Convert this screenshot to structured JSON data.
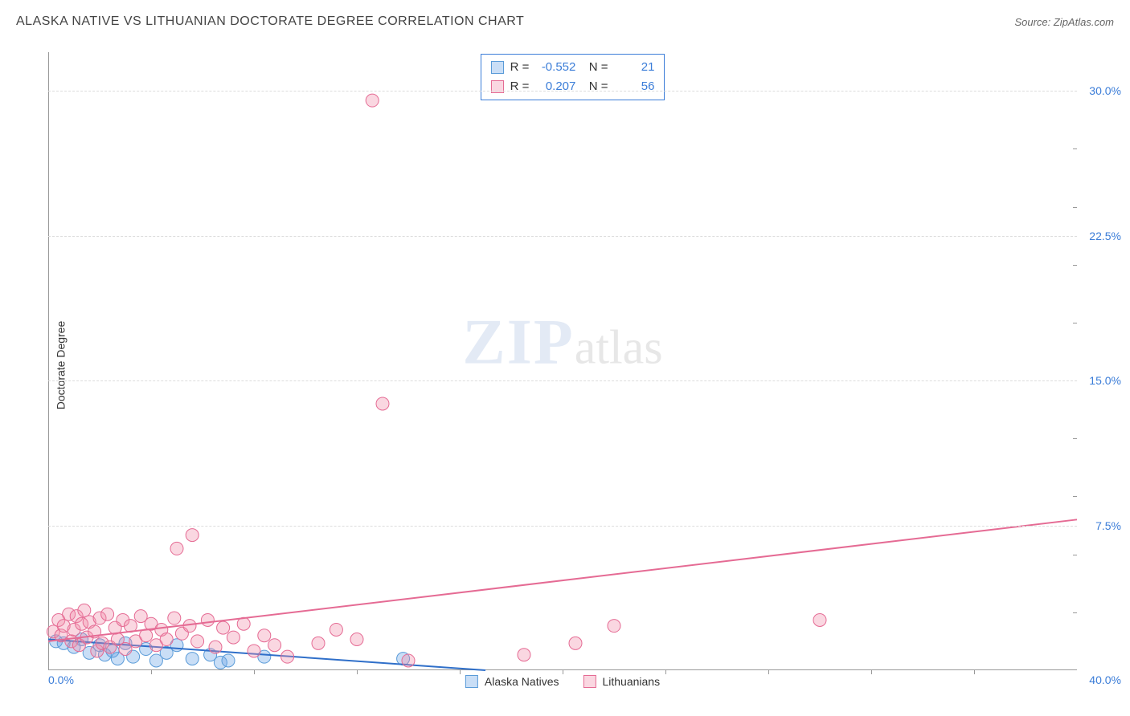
{
  "header": {
    "title": "ALASKA NATIVE VS LITHUANIAN DOCTORATE DEGREE CORRELATION CHART",
    "source": "Source: ZipAtlas.com"
  },
  "chart": {
    "type": "scatter",
    "ylabel": "Doctorate Degree",
    "xlim": [
      0,
      40
    ],
    "ylim": [
      0,
      32
    ],
    "background_color": "#ffffff",
    "grid_color": "#dddddd",
    "axis_color": "#999999",
    "tick_label_color": "#3b7dd8",
    "tick_fontsize": 14,
    "yticks": [
      {
        "v": 7.5,
        "label": "7.5%"
      },
      {
        "v": 15.0,
        "label": "15.0%"
      },
      {
        "v": 22.5,
        "label": "22.5%"
      },
      {
        "v": 30.0,
        "label": "30.0%"
      }
    ],
    "xticks_labels": {
      "min": "0.0%",
      "max": "40.0%"
    },
    "xticks_minor": [
      4,
      8,
      12,
      16,
      20,
      24,
      28,
      32,
      36
    ],
    "yticks_minor_right": [
      3,
      6,
      9,
      12,
      18,
      21,
      24,
      27
    ],
    "watermark": {
      "zip": "ZIP",
      "atlas": "atlas"
    },
    "series": [
      {
        "name": "Alaska Natives",
        "label": "Alaska Natives",
        "fill": "rgba(100,160,230,0.35)",
        "stroke": "#5a9bd8",
        "line_color": "#2f6fc9",
        "line_width": 2,
        "marker_r": 8,
        "trend": {
          "x1": 0,
          "y1": 1.6,
          "x2": 17,
          "y2": 0
        },
        "stats": {
          "R": "-0.552",
          "N": "21"
        },
        "points": [
          [
            0.3,
            1.5
          ],
          [
            0.6,
            1.4
          ],
          [
            1.0,
            1.2
          ],
          [
            1.3,
            1.6
          ],
          [
            1.6,
            0.9
          ],
          [
            2.0,
            1.3
          ],
          [
            2.2,
            0.8
          ],
          [
            2.5,
            1.0
          ],
          [
            2.7,
            0.6
          ],
          [
            3.0,
            1.4
          ],
          [
            3.3,
            0.7
          ],
          [
            3.8,
            1.1
          ],
          [
            4.2,
            0.5
          ],
          [
            4.6,
            0.9
          ],
          [
            5.0,
            1.3
          ],
          [
            5.6,
            0.6
          ],
          [
            6.3,
            0.8
          ],
          [
            6.7,
            0.4
          ],
          [
            7.0,
            0.5
          ],
          [
            8.4,
            0.7
          ],
          [
            13.8,
            0.6
          ]
        ]
      },
      {
        "name": "Lithuanians",
        "label": "Lithuanians",
        "fill": "rgba(240,140,170,0.35)",
        "stroke": "#e56b94",
        "line_color": "#e56b94",
        "line_width": 2,
        "marker_r": 8,
        "trend": {
          "x1": 0,
          "y1": 1.5,
          "x2": 40,
          "y2": 7.8
        },
        "stats": {
          "R": "0.207",
          "N": "56"
        },
        "points": [
          [
            0.2,
            2.0
          ],
          [
            0.4,
            2.6
          ],
          [
            0.5,
            1.8
          ],
          [
            0.6,
            2.3
          ],
          [
            0.8,
            2.9
          ],
          [
            0.9,
            1.5
          ],
          [
            1.0,
            2.1
          ],
          [
            1.1,
            2.8
          ],
          [
            1.2,
            1.3
          ],
          [
            1.3,
            2.4
          ],
          [
            1.4,
            3.1
          ],
          [
            1.5,
            1.7
          ],
          [
            1.6,
            2.5
          ],
          [
            1.8,
            2.0
          ],
          [
            1.9,
            1.0
          ],
          [
            2.0,
            2.7
          ],
          [
            2.1,
            1.4
          ],
          [
            2.3,
            2.9
          ],
          [
            2.4,
            1.2
          ],
          [
            2.6,
            2.2
          ],
          [
            2.7,
            1.6
          ],
          [
            2.9,
            2.6
          ],
          [
            3.0,
            1.1
          ],
          [
            3.2,
            2.3
          ],
          [
            3.4,
            1.5
          ],
          [
            3.6,
            2.8
          ],
          [
            3.8,
            1.8
          ],
          [
            4.0,
            2.4
          ],
          [
            4.2,
            1.3
          ],
          [
            4.4,
            2.1
          ],
          [
            4.6,
            1.6
          ],
          [
            4.9,
            2.7
          ],
          [
            5.0,
            6.3
          ],
          [
            5.2,
            1.9
          ],
          [
            5.5,
            2.3
          ],
          [
            5.6,
            7.0
          ],
          [
            5.8,
            1.5
          ],
          [
            6.2,
            2.6
          ],
          [
            6.5,
            1.2
          ],
          [
            6.8,
            2.2
          ],
          [
            7.2,
            1.7
          ],
          [
            7.6,
            2.4
          ],
          [
            8.0,
            1.0
          ],
          [
            8.4,
            1.8
          ],
          [
            8.8,
            1.3
          ],
          [
            9.3,
            0.7
          ],
          [
            10.5,
            1.4
          ],
          [
            11.2,
            2.1
          ],
          [
            12.0,
            1.6
          ],
          [
            12.6,
            29.5
          ],
          [
            13.0,
            13.8
          ],
          [
            14.0,
            0.5
          ],
          [
            18.5,
            0.8
          ],
          [
            20.5,
            1.4
          ],
          [
            22.0,
            2.3
          ],
          [
            30.0,
            2.6
          ]
        ]
      }
    ]
  },
  "legend_bottom": [
    {
      "label": "Alaska Natives",
      "fill": "rgba(100,160,230,0.35)",
      "stroke": "#5a9bd8"
    },
    {
      "label": "Lithuanians",
      "fill": "rgba(240,140,170,0.35)",
      "stroke": "#e56b94"
    }
  ]
}
